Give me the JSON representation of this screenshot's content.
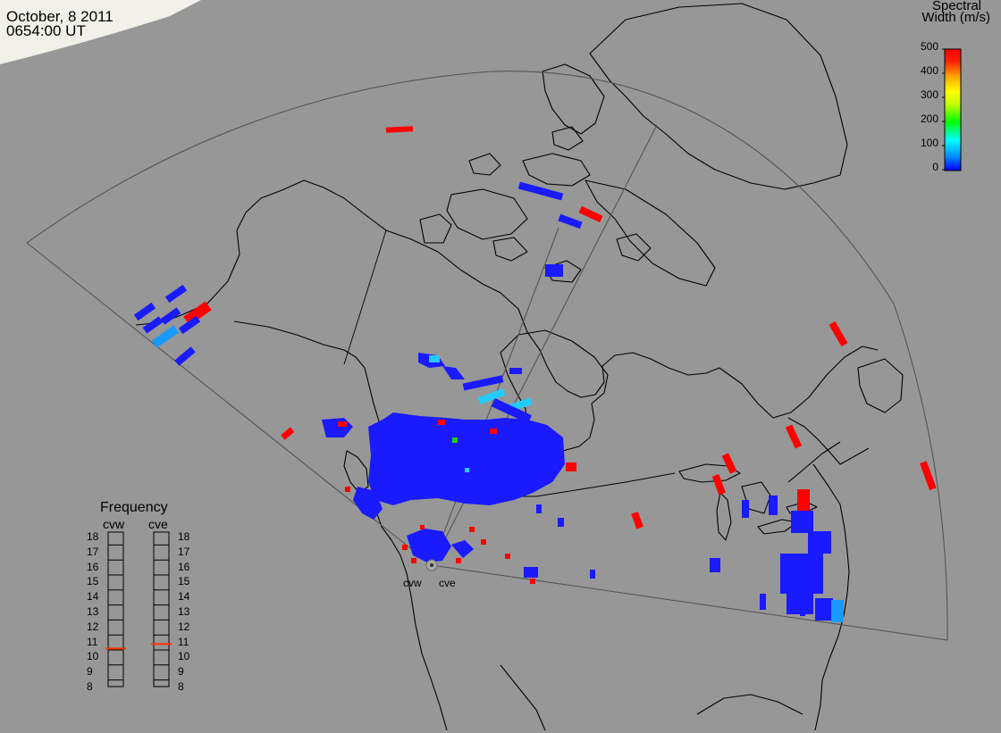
{
  "timestamp": {
    "date": "October, 8 2011",
    "time": "0654:00 UT"
  },
  "legend": {
    "title_line1": "Spectral",
    "title_line2": "Width (m/s)",
    "ticks": [
      "500",
      "400",
      "300",
      "200",
      "100",
      "0"
    ],
    "scale_min": 0,
    "scale_max": 500,
    "colors": [
      "#0000ff",
      "#0090ff",
      "#00ffff",
      "#00ff00",
      "#c8ff00",
      "#ffff00",
      "#ffa000",
      "#ff2000",
      "#ff0000"
    ]
  },
  "frequency": {
    "title": "Frequency",
    "radars": [
      {
        "name": "cvw",
        "selected": "11",
        "marker_level": 10.6
      },
      {
        "name": "cve",
        "selected": "11",
        "marker_level": 10.9
      }
    ],
    "levels": [
      "18",
      "17",
      "16",
      "15",
      "14",
      "13",
      "12",
      "11",
      "10",
      "9",
      "8"
    ],
    "marker_color": "#ff3000"
  },
  "radar_sites": [
    "cvw",
    "cve"
  ],
  "colors": {
    "background": "#979797",
    "coastline": "#000000",
    "fov_outline": "#505050",
    "low_width": "#1a1aff",
    "high_width": "#ff0000"
  }
}
